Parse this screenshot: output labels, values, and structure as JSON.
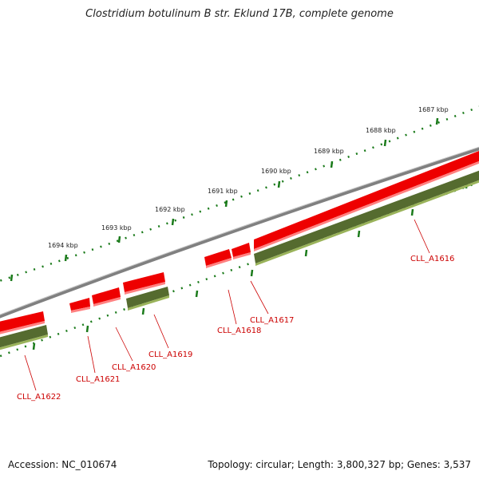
{
  "title": "Clostridium botulinum B str. Eklund 17B, complete genome",
  "footer": {
    "accession": "Accession: NC_010674",
    "summary": "Topology: circular; Length: 3,800,327 bp; Genes: 3,537"
  },
  "colors": {
    "backbone": "#808080",
    "cds_forward": "#ee0000",
    "cds_forward_shadow": "#ff8080",
    "gene_track": "#556b2f",
    "gene_track_light": "#9ab35a",
    "ruler": "#1a7a1a",
    "label": "#cc0000"
  },
  "ruler_labels": [
    "1687 kbp",
    "1688 kbp",
    "1689 kbp",
    "1690 kbp",
    "1691 kbp",
    "1692 kbp",
    "1693 kbp",
    "1694 kbp"
  ],
  "genes": [
    "CLL_A1616",
    "CLL_A1617",
    "CLL_A1618",
    "CLL_A1619",
    "CLL_A1620",
    "CLL_A1621",
    "CLL_A1622"
  ]
}
